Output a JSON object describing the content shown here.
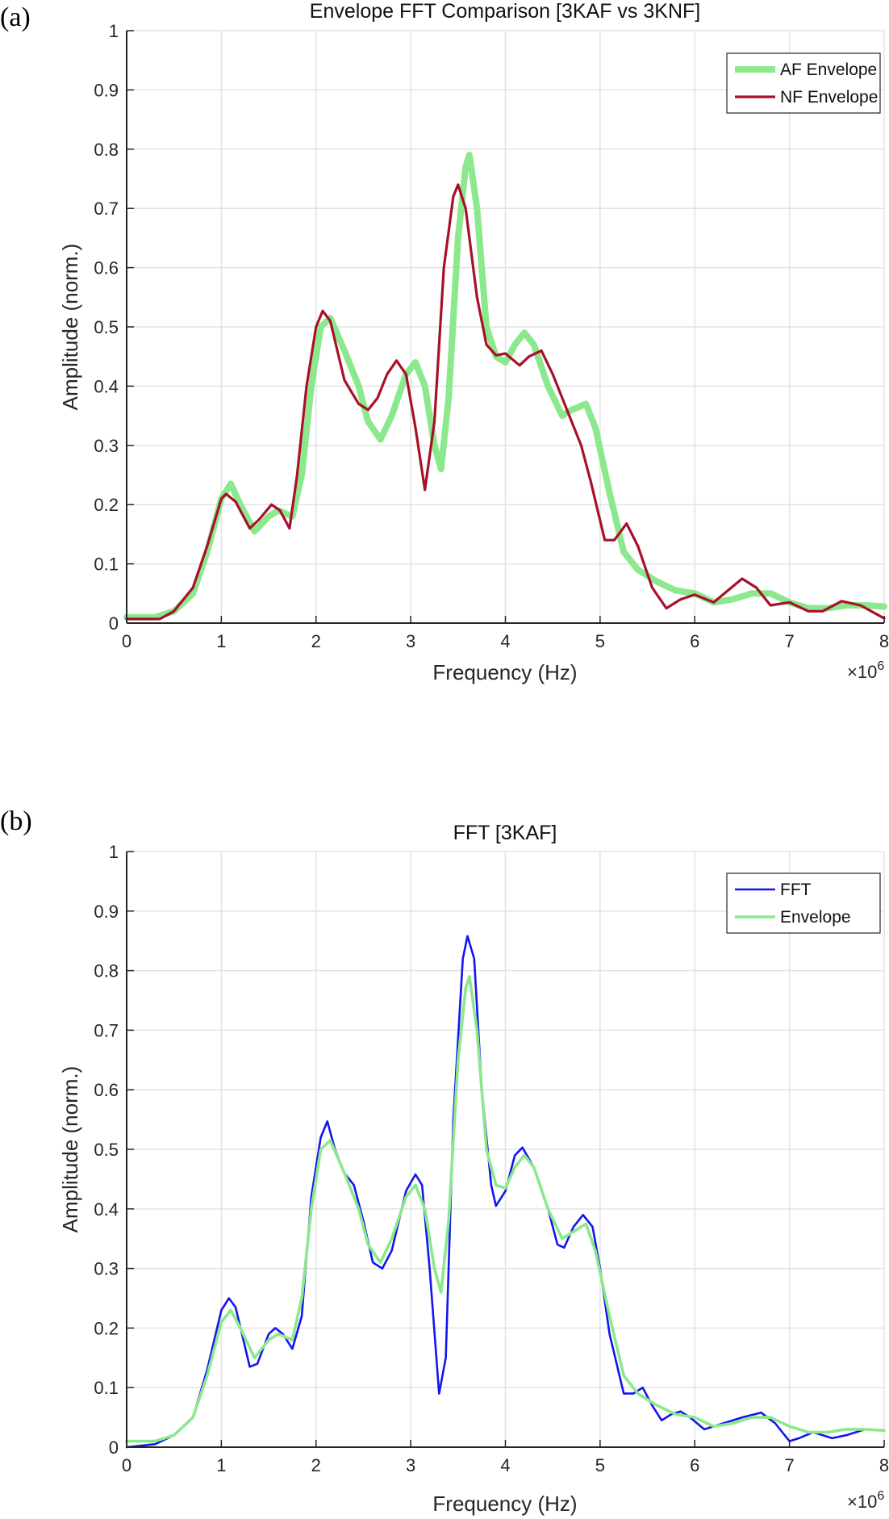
{
  "chart_data": [
    {
      "type": "line",
      "panel_label": "(a)",
      "title": "Envelope FFT Comparison [3KAF vs 3KNF]",
      "xlabel": "Frequency (Hz)",
      "ylabel": "Amplitude (norm.)",
      "x_multiplier": "×10^6",
      "xlim": [
        0,
        8
      ],
      "ylim": [
        0,
        1
      ],
      "xticks": [
        "0",
        "1",
        "2",
        "3",
        "4",
        "5",
        "6",
        "7",
        "8"
      ],
      "yticks": [
        "0",
        "0.1",
        "0.2",
        "0.3",
        "0.4",
        "0.5",
        "0.6",
        "0.7",
        "0.8",
        "0.9",
        "1"
      ],
      "grid": true,
      "legend_position": "top-right",
      "series": [
        {
          "name": "AF Envelope",
          "color": "#8ce88c",
          "x": [
            0,
            0.3,
            0.5,
            0.7,
            0.85,
            1.0,
            1.1,
            1.2,
            1.35,
            1.5,
            1.6,
            1.75,
            1.85,
            1.95,
            2.05,
            2.15,
            2.3,
            2.45,
            2.55,
            2.68,
            2.8,
            2.95,
            3.05,
            3.15,
            3.25,
            3.32,
            3.4,
            3.5,
            3.58,
            3.62,
            3.7,
            3.8,
            3.9,
            4.0,
            4.1,
            4.2,
            4.3,
            4.45,
            4.6,
            4.7,
            4.85,
            4.95,
            5.1,
            5.25,
            5.4,
            5.6,
            5.8,
            6.0,
            6.2,
            6.4,
            6.6,
            6.8,
            7.0,
            7.2,
            7.4,
            7.6,
            7.8,
            8.0
          ],
          "y": [
            0.01,
            0.01,
            0.02,
            0.05,
            0.12,
            0.21,
            0.235,
            0.2,
            0.155,
            0.18,
            0.19,
            0.18,
            0.25,
            0.4,
            0.5,
            0.515,
            0.46,
            0.4,
            0.34,
            0.31,
            0.35,
            0.42,
            0.44,
            0.4,
            0.3,
            0.26,
            0.38,
            0.65,
            0.77,
            0.79,
            0.7,
            0.5,
            0.45,
            0.44,
            0.47,
            0.49,
            0.47,
            0.4,
            0.35,
            0.36,
            0.37,
            0.33,
            0.22,
            0.12,
            0.09,
            0.07,
            0.055,
            0.05,
            0.035,
            0.04,
            0.05,
            0.05,
            0.035,
            0.025,
            0.025,
            0.03,
            0.03,
            0.028
          ]
        },
        {
          "name": "NF Envelope",
          "color": "#a8102a",
          "x": [
            0,
            0.35,
            0.5,
            0.7,
            0.85,
            1.0,
            1.05,
            1.15,
            1.3,
            1.4,
            1.53,
            1.62,
            1.72,
            1.8,
            1.9,
            2.0,
            2.07,
            2.15,
            2.3,
            2.45,
            2.55,
            2.65,
            2.75,
            2.85,
            2.95,
            3.05,
            3.15,
            3.25,
            3.35,
            3.45,
            3.5,
            3.58,
            3.7,
            3.8,
            3.9,
            4.0,
            4.15,
            4.25,
            4.38,
            4.5,
            4.65,
            4.8,
            4.9,
            5.05,
            5.15,
            5.28,
            5.4,
            5.55,
            5.7,
            5.85,
            6.0,
            6.2,
            6.35,
            6.5,
            6.65,
            6.8,
            7.0,
            7.2,
            7.35,
            7.55,
            7.75,
            8.0
          ],
          "y": [
            0.007,
            0.007,
            0.02,
            0.06,
            0.13,
            0.21,
            0.218,
            0.205,
            0.16,
            0.175,
            0.2,
            0.19,
            0.16,
            0.25,
            0.4,
            0.5,
            0.527,
            0.51,
            0.41,
            0.37,
            0.36,
            0.38,
            0.42,
            0.443,
            0.42,
            0.33,
            0.225,
            0.34,
            0.6,
            0.72,
            0.74,
            0.7,
            0.55,
            0.47,
            0.452,
            0.455,
            0.435,
            0.45,
            0.46,
            0.42,
            0.36,
            0.3,
            0.24,
            0.14,
            0.14,
            0.168,
            0.13,
            0.06,
            0.025,
            0.04,
            0.048,
            0.035,
            0.055,
            0.075,
            0.06,
            0.03,
            0.035,
            0.02,
            0.02,
            0.037,
            0.03,
            0.008
          ]
        }
      ]
    },
    {
      "type": "line",
      "panel_label": "(b)",
      "title": "FFT [3KAF]",
      "xlabel": "Frequency (Hz)",
      "ylabel": "Amplitude (norm.)",
      "x_multiplier": "×10^6",
      "xlim": [
        0,
        8
      ],
      "ylim": [
        0,
        1
      ],
      "xticks": [
        "0",
        "1",
        "2",
        "3",
        "4",
        "5",
        "6",
        "7",
        "8"
      ],
      "yticks": [
        "0",
        "0.1",
        "0.2",
        "0.3",
        "0.4",
        "0.5",
        "0.6",
        "0.7",
        "0.8",
        "0.9",
        "1"
      ],
      "grid": true,
      "legend_position": "top-right",
      "series": [
        {
          "name": "FFT",
          "color": "#1414f0",
          "x": [
            0,
            0.3,
            0.5,
            0.7,
            0.85,
            1.0,
            1.08,
            1.15,
            1.3,
            1.38,
            1.5,
            1.57,
            1.65,
            1.75,
            1.85,
            1.95,
            2.05,
            2.12,
            2.2,
            2.3,
            2.4,
            2.5,
            2.6,
            2.7,
            2.8,
            2.95,
            3.05,
            3.12,
            3.2,
            3.3,
            3.37,
            3.45,
            3.55,
            3.6,
            3.67,
            3.75,
            3.85,
            3.9,
            4.0,
            4.1,
            4.18,
            4.3,
            4.45,
            4.55,
            4.62,
            4.72,
            4.82,
            4.92,
            5.0,
            5.1,
            5.25,
            5.35,
            5.45,
            5.55,
            5.65,
            5.75,
            5.85,
            5.95,
            6.1,
            6.3,
            6.5,
            6.7,
            6.85,
            7.0,
            7.1,
            7.25,
            7.45,
            7.6,
            7.8,
            8.0
          ],
          "y": [
            0.0,
            0.005,
            0.02,
            0.05,
            0.13,
            0.23,
            0.25,
            0.235,
            0.135,
            0.14,
            0.19,
            0.2,
            0.19,
            0.165,
            0.22,
            0.42,
            0.52,
            0.547,
            0.5,
            0.46,
            0.44,
            0.38,
            0.31,
            0.3,
            0.33,
            0.43,
            0.458,
            0.44,
            0.3,
            0.09,
            0.15,
            0.55,
            0.82,
            0.858,
            0.82,
            0.6,
            0.44,
            0.405,
            0.43,
            0.49,
            0.503,
            0.47,
            0.4,
            0.34,
            0.335,
            0.37,
            0.39,
            0.37,
            0.3,
            0.19,
            0.09,
            0.09,
            0.1,
            0.07,
            0.045,
            0.055,
            0.06,
            0.05,
            0.03,
            0.04,
            0.05,
            0.058,
            0.04,
            0.01,
            0.015,
            0.025,
            0.015,
            0.02,
            0.03,
            0.028
          ]
        },
        {
          "name": "Envelope",
          "color": "#8ce88c",
          "x": [
            0,
            0.3,
            0.5,
            0.7,
            0.85,
            1.0,
            1.1,
            1.2,
            1.35,
            1.5,
            1.6,
            1.75,
            1.85,
            1.95,
            2.05,
            2.15,
            2.3,
            2.45,
            2.55,
            2.68,
            2.8,
            2.95,
            3.05,
            3.15,
            3.25,
            3.32,
            3.4,
            3.5,
            3.58,
            3.62,
            3.7,
            3.8,
            3.9,
            4.0,
            4.1,
            4.2,
            4.3,
            4.45,
            4.6,
            4.7,
            4.85,
            4.95,
            5.1,
            5.25,
            5.4,
            5.6,
            5.8,
            6.0,
            6.2,
            6.4,
            6.6,
            6.8,
            7.0,
            7.2,
            7.4,
            7.6,
            7.8,
            8.0
          ],
          "y": [
            0.01,
            0.01,
            0.02,
            0.05,
            0.12,
            0.21,
            0.23,
            0.2,
            0.15,
            0.18,
            0.19,
            0.18,
            0.25,
            0.4,
            0.5,
            0.515,
            0.46,
            0.4,
            0.34,
            0.31,
            0.35,
            0.42,
            0.44,
            0.4,
            0.3,
            0.26,
            0.38,
            0.65,
            0.77,
            0.79,
            0.7,
            0.5,
            0.44,
            0.435,
            0.47,
            0.49,
            0.47,
            0.4,
            0.35,
            0.36,
            0.375,
            0.33,
            0.22,
            0.12,
            0.09,
            0.07,
            0.055,
            0.05,
            0.035,
            0.04,
            0.05,
            0.05,
            0.035,
            0.025,
            0.025,
            0.03,
            0.03,
            0.028
          ]
        }
      ]
    }
  ]
}
